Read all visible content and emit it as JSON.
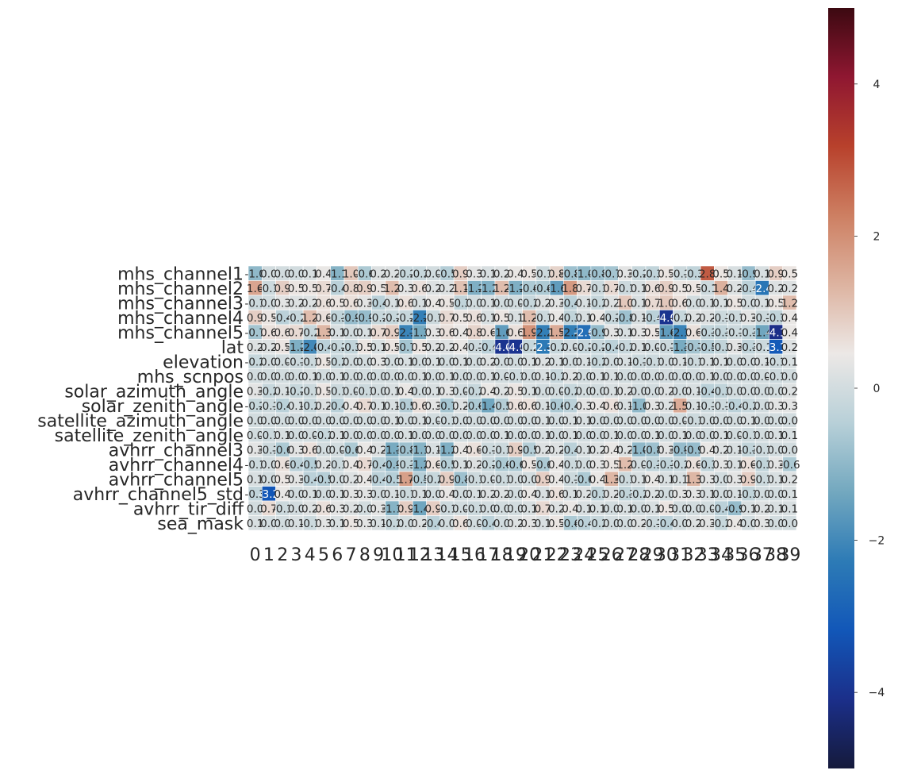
{
  "chart_data": {
    "type": "heatmap",
    "title": "",
    "xlabel": "",
    "ylabel": "",
    "rows": [
      "mhs_channel1",
      "mhs_channel2",
      "mhs_channel3",
      "mhs_channel4",
      "mhs_channel5",
      "lat",
      "elevation",
      "mhs_scnpos",
      "solar_azimuth_angle",
      "solar_zenith_angle",
      "satellite_azimuth_angle",
      "satellite_zenith_angle",
      "avhrr_channel3",
      "avhrr_channel4",
      "avhrr_channel5",
      "avhrr_channel5_std",
      "avhrr_tir_diff",
      "sea_mask"
    ],
    "columns": [
      "0",
      "1",
      "2",
      "3",
      "4",
      "5",
      "6",
      "7",
      "8",
      "9",
      "10",
      "11",
      "12",
      "13",
      "14",
      "15",
      "16",
      "17",
      "18",
      "19",
      "20",
      "21",
      "22",
      "23",
      "24",
      "25",
      "26",
      "27",
      "28",
      "29",
      "30",
      "31",
      "32",
      "33",
      "34",
      "35",
      "36",
      "37",
      "38",
      "39"
    ],
    "values": [
      [
        -1.0,
        0.0,
        0.0,
        0.0,
        0.1,
        0.4,
        -1.1,
        1.0,
        -0.6,
        0.2,
        0.2,
        -0.2,
        -0.2,
        0.0,
        -0.5,
        0.9,
        0.3,
        0.1,
        0.2,
        0.4,
        0.5,
        -0.1,
        0.8,
        -0.8,
        -1.0,
        -0.8,
        -0.7,
        0.3,
        -0.2,
        -0.3,
        0.5,
        -0.1,
        -0.3,
        2.8,
        0.5,
        0.1,
        -0.9,
        0.1,
        0.9,
        0.5
      ],
      [
        1.6,
        -0.1,
        0.9,
        0.5,
        0.5,
        0.7,
        -0.4,
        0.8,
        0.9,
        0.5,
        1.2,
        0.3,
        0.6,
        0.2,
        0.2,
        1.1,
        -1.2,
        -1.2,
        1.2,
        -1.2,
        -0.6,
        -0.6,
        -1.6,
        1.8,
        0.7,
        -0.1,
        0.7,
        -0.1,
        0.1,
        0.6,
        0.9,
        0.5,
        0.5,
        -0.1,
        1.4,
        0.2,
        -0.4,
        -2.4,
        0.2,
        0.2
      ],
      [
        -0.1,
        0.0,
        0.3,
        0.2,
        0.2,
        0.6,
        0.5,
        0.6,
        0.3,
        -0.4,
        0.1,
        0.6,
        0.1,
        0.4,
        0.5,
        -0.3,
        0.0,
        0.1,
        0.0,
        -0.0,
        -0.2,
        0.2,
        0.3,
        -0.4,
        0.1,
        -0.2,
        0.2,
        1.0,
        0.1,
        0.7,
        1.0,
        0.6,
        -0.0,
        0.1,
        0.1,
        0.5,
        0.0,
        0.1,
        0.5,
        1.2
      ],
      [
        0.9,
        0.5,
        -0.4,
        -0.2,
        1.2,
        0.6,
        -0.3,
        -0.9,
        -0.9,
        -0.2,
        -0.2,
        -0.2,
        -2.2,
        -0.1,
        0.7,
        0.5,
        0.6,
        0.1,
        0.5,
        0.1,
        1.2,
        -0.1,
        0.4,
        -0.3,
        0.1,
        0.4,
        -0.2,
        -0.8,
        0.1,
        -0.4,
        -4.0,
        -0.2,
        0.2,
        0.2,
        -0.1,
        -0.1,
        0.3,
        -0.1,
        -0.3,
        0.4
      ],
      [
        -0.7,
        0.6,
        0.6,
        0.7,
        -0.2,
        1.3,
        0.1,
        0.0,
        0.1,
        0.7,
        0.9,
        -2.1,
        -1.3,
        0.3,
        0.6,
        0.4,
        0.8,
        0.6,
        -1.6,
        0.6,
        1.9,
        -2.2,
        1.5,
        -2.2,
        -2.6,
        -0.9,
        0.3,
        0.1,
        0.3,
        0.5,
        -1.6,
        -2.1,
        0.6,
        -0.3,
        -0.3,
        -0.1,
        -0.3,
        -1.4,
        -4.1,
        0.4
      ],
      [
        0.2,
        0.2,
        0.5,
        -1.2,
        -2.0,
        -0.4,
        -0.2,
        -0.3,
        0.5,
        0.1,
        0.5,
        -0.7,
        0.5,
        0.2,
        0.2,
        0.4,
        -0.1,
        -0.4,
        -4.0,
        -4.0,
        -0.2,
        -2.3,
        -0.2,
        0.0,
        -0.2,
        -0.2,
        -0.4,
        -0.2,
        0.1,
        0.0,
        -0.1,
        -1.3,
        -0.7,
        -0.5,
        -0.3,
        0.3,
        -0.3,
        -0.1,
        -3.1,
        0.2
      ],
      [
        -0.2,
        0.0,
        0.0,
        -0.1,
        -0.1,
        0.5,
        -0.2,
        0.0,
        0.0,
        0.3,
        -0.0,
        0.1,
        0.0,
        0.1,
        -0.0,
        0.1,
        0.0,
        0.2,
        0.0,
        0.0,
        0.1,
        0.2,
        0.1,
        0.0,
        0.1,
        -0.2,
        0.0,
        0.1,
        -0.1,
        -0.1,
        -0.0,
        0.1,
        -0.1,
        0.1,
        0.1,
        -0.0,
        0.0,
        0.1,
        -0.1,
        0.1
      ],
      [
        -0.0,
        0.0,
        -0.0,
        -0.0,
        0.1,
        0.0,
        0.1,
        0.0,
        -0.0,
        0.0,
        -0.0,
        0.0,
        0.1,
        0.0,
        0.1,
        0.0,
        0.0,
        0.1,
        0.0,
        -0.1,
        -0.0,
        0.1,
        -0.2,
        0.2,
        -0.0,
        0.1,
        0.1,
        0.0,
        0.0,
        0.0,
        -0.0,
        0.0,
        -0.0,
        0.1,
        0.0,
        -0.0,
        -0.0,
        0.0,
        -0.1,
        0.0
      ],
      [
        0.3,
        -0.2,
        0.1,
        -0.2,
        -0.1,
        0.5,
        -0.1,
        0.0,
        -0.1,
        0.0,
        0.1,
        0.4,
        -0.0,
        0.1,
        0.3,
        -0.0,
        -0.2,
        0.4,
        0.2,
        0.5,
        0.1,
        0.0,
        0.0,
        -0.2,
        0.0,
        0.0,
        0.1,
        0.2,
        0.0,
        -0.0,
        0.2,
        -0.0,
        0.1,
        -0.4,
        -0.3,
        -0.0,
        -0.0,
        -0.0,
        -0.0,
        0.2
      ],
      [
        -0.2,
        -0.1,
        -0.4,
        0.1,
        -0.2,
        0.2,
        -0.4,
        0.4,
        0.7,
        0.1,
        0.1,
        -0.5,
        0.6,
        0.3,
        -0.7,
        0.2,
        -0.6,
        -1.4,
        -0.5,
        0.6,
        0.6,
        0.1,
        -0.6,
        -0.4,
        0.3,
        0.4,
        0.6,
        0.1,
        -1.0,
        0.3,
        0.2,
        1.5,
        0.1,
        -0.1,
        -0.1,
        -0.4,
        -0.2,
        -0.0,
        0.3,
        0.3
      ],
      [
        -0.0,
        -0.0,
        0.0,
        0.0,
        -0.0,
        -0.0,
        -0.0,
        0.0,
        -0.0,
        0.0,
        0.1,
        -0.0,
        0.1,
        0.0,
        -0.1,
        0.0,
        0.0,
        0.0,
        0.0,
        -0.0,
        0.0,
        0.1,
        -0.0,
        0.1,
        0.1,
        0.0,
        0.0,
        -0.0,
        0.0,
        -0.0,
        0.0,
        -0.0,
        -0.1,
        -0.0,
        -0.0,
        -0.0,
        0.1,
        0.0,
        -0.0,
        0.0
      ],
      [
        0.0,
        -0.1,
        0.1,
        0.0,
        0.0,
        -0.2,
        0.1,
        -0.0,
        0.0,
        -0.0,
        0.0,
        0.1,
        -0.0,
        0.0,
        0.0,
        -0.0,
        0.0,
        0.0,
        0.1,
        0.0,
        0.0,
        0.1,
        0.0,
        0.1,
        0.0,
        -0.0,
        0.1,
        -0.0,
        0.0,
        0.1,
        -0.0,
        0.1,
        -0.0,
        0.0,
        0.1,
        -0.0,
        -0.1,
        0.0,
        0.1,
        0.1
      ],
      [
        0.3,
        -0.1,
        -0.6,
        0.3,
        0.6,
        -0.0,
        0.0,
        -0.6,
        0.4,
        0.2,
        -1.3,
        -0.8,
        -1.1,
        0.1,
        -1.2,
        0.4,
        0.6,
        -0.1,
        -0.1,
        0.9,
        -0.5,
        0.2,
        0.2,
        -0.4,
        0.1,
        0.2,
        0.4,
        0.2,
        -1.0,
        -0.8,
        0.3,
        -0.9,
        -0.9,
        0.4,
        0.2,
        0.1,
        -0.3,
        -0.1,
        0.0,
        0.0
      ],
      [
        -0.1,
        0.0,
        0.6,
        -0.4,
        -0.5,
        0.2,
        -0.1,
        0.4,
        0.7,
        -0.4,
        -0.9,
        -0.3,
        -1.2,
        0.6,
        -0.5,
        0.1,
        0.2,
        -0.2,
        -0.6,
        -0.6,
        0.5,
        -0.6,
        0.4,
        -0.1,
        0.0,
        0.3,
        0.5,
        1.2,
        0.0,
        -0.3,
        -0.3,
        -0.2,
        0.6,
        -0.3,
        0.3,
        0.1,
        0.6,
        -0.3,
        0.3,
        -0.6
      ],
      [
        0.1,
        0.0,
        0.5,
        0.3,
        -0.4,
        -0.5,
        0.0,
        0.2,
        0.4,
        -0.4,
        -0.5,
        1.7,
        -0.5,
        -0.2,
        0.9,
        -0.8,
        -0.1,
        0.0,
        -0.1,
        0.0,
        -0.0,
        0.9,
        0.4,
        -0.1,
        -0.6,
        0.4,
        1.3,
        -0.1,
        0.1,
        0.4,
        0.1,
        0.1,
        1.3,
        0.3,
        -0.0,
        0.3,
        0.9,
        -0.1,
        0.1,
        0.2
      ],
      [
        -0.3,
        -3.2,
        0.4,
        0.0,
        0.1,
        0.0,
        0.1,
        0.3,
        0.3,
        0.0,
        0.1,
        -0.1,
        0.1,
        0.0,
        0.4,
        0.0,
        0.1,
        0.2,
        0.2,
        -0.0,
        0.4,
        0.1,
        0.6,
        0.1,
        0.2,
        -0.3,
        0.2,
        -0.3,
        -0.2,
        0.2,
        -0.0,
        0.3,
        0.3,
        0.1,
        0.0,
        0.1,
        -0.3,
        0.0,
        0.0,
        0.1
      ],
      [
        -0.0,
        0.7,
        -0.1,
        0.0,
        0.2,
        0.6,
        0.3,
        0.2,
        -0.0,
        0.3,
        -1.1,
        0.9,
        -1.4,
        0.9,
        -0.1,
        0.0,
        -0.1,
        0.0,
        0.0,
        0.0,
        0.1,
        0.7,
        0.2,
        0.4,
        0.1,
        0.1,
        0.0,
        0.1,
        0.0,
        0.1,
        0.5,
        0.0,
        0.0,
        -0.0,
        -0.4,
        -0.9,
        0.1,
        0.2,
        0.1,
        0.1
      ],
      [
        0.1,
        0.0,
        0.0,
        0.1,
        -0.1,
        0.3,
        0.1,
        0.5,
        0.3,
        0.1,
        -0.2,
        -0.0,
        0.2,
        -0.4,
        0.0,
        0.6,
        0.0,
        -0.4,
        0.0,
        0.2,
        0.3,
        0.1,
        0.5,
        -0.6,
        -0.4,
        -0.2,
        0.0,
        0.0,
        0.2,
        -0.1,
        -0.4,
        0.0,
        0.2,
        0.3,
        -0.2,
        0.4,
        0.0,
        0.3,
        0.0,
        0.0
      ]
    ],
    "vmin": -5,
    "vmax": 5,
    "colorbar_ticks": [
      4,
      2,
      0,
      -2,
      -4
    ],
    "colorbar_labels": [
      "4",
      "2",
      "0",
      "−2",
      "−4"
    ],
    "colormap": [
      "#151a3b",
      "#1b2f8a",
      "#1257b8",
      "#2d7bb6",
      "#73a8bf",
      "#b8d0d8",
      "#ece8e6",
      "#ddb3a0",
      "#cd7f62",
      "#b8412c",
      "#8f1731",
      "#3c0911"
    ],
    "annotations": true,
    "grid_lines": "white cell borders"
  }
}
